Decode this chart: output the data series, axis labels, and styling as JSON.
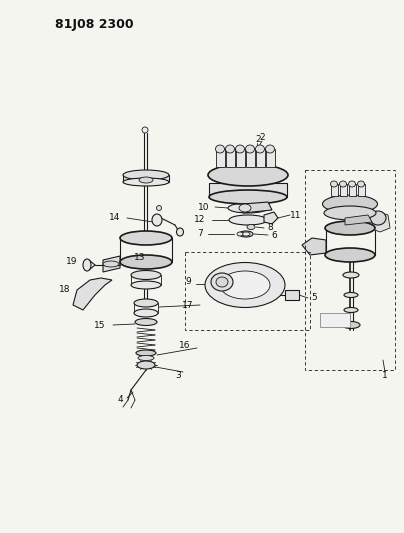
{
  "title": "81J08 2300",
  "bg_color": "#f5f5f0",
  "line_color": "#1a1a1a",
  "label_color": "#111111",
  "label_fontsize": 6.5,
  "fig_width": 4.04,
  "fig_height": 5.33,
  "dpi": 100
}
